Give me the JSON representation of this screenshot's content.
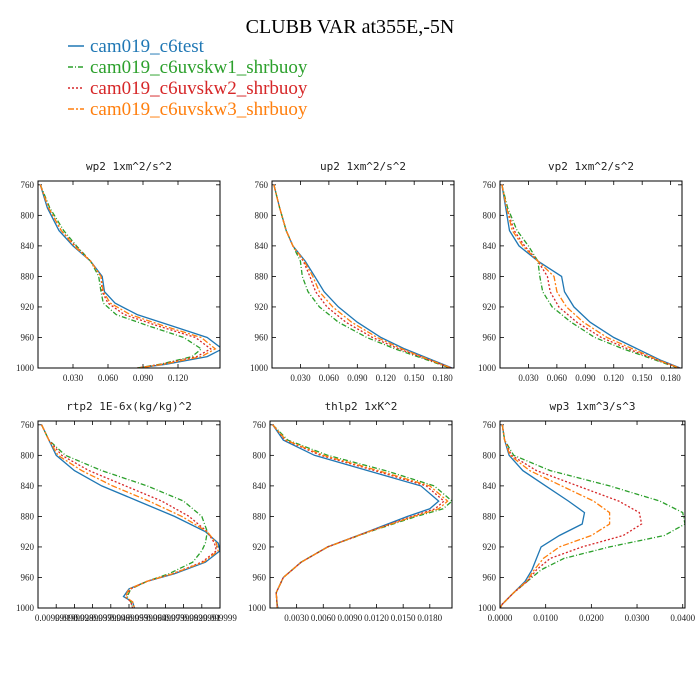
{
  "title": "CLUBB VAR at355E,-5N",
  "legend": [
    {
      "name": "cam019_c6test",
      "color": "#1f77b4",
      "dash": "solid"
    },
    {
      "name": "cam019_c6uvskw1_shrbuoy",
      "color": "#2ca02c",
      "dash": "dashdot"
    },
    {
      "name": "cam019_c6uvskw2_shrbuoy",
      "color": "#d62728",
      "dash": "dot"
    },
    {
      "name": "cam019_c6uvskw3_shrbuoy",
      "color": "#ff7f0e",
      "dash": "dashdot2"
    }
  ],
  "chart_data": [
    {
      "type": "line",
      "title": "wp2  1xm^2/s^2",
      "x_tick_labels": [
        "0.030",
        "0.060",
        "0.090",
        "0.120"
      ],
      "y_tick_labels": [
        "760",
        "800",
        "840",
        "880",
        "920",
        "960",
        "1000"
      ],
      "xlim": [
        0,
        0.156
      ],
      "ylim": [
        1000,
        755
      ],
      "y": [
        760,
        790,
        820,
        840,
        860,
        880,
        900,
        915,
        930,
        945,
        960,
        975,
        985,
        995,
        1000
      ],
      "series": [
        {
          "name": "cam019_c6test",
          "x": [
            0.002,
            0.008,
            0.018,
            0.03,
            0.045,
            0.055,
            0.057,
            0.066,
            0.085,
            0.115,
            0.145,
            0.158,
            0.145,
            0.11,
            0.086
          ]
        },
        {
          "name": "cam019_c6uvskw1_shrbuoy",
          "x": [
            0.002,
            0.01,
            0.022,
            0.033,
            0.045,
            0.052,
            0.054,
            0.056,
            0.067,
            0.095,
            0.125,
            0.14,
            0.132,
            0.105,
            0.085
          ]
        },
        {
          "name": "cam019_c6uvskw2_shrbuoy",
          "x": [
            0.002,
            0.009,
            0.02,
            0.032,
            0.045,
            0.054,
            0.055,
            0.06,
            0.074,
            0.103,
            0.135,
            0.148,
            0.136,
            0.106,
            0.085
          ]
        },
        {
          "name": "cam019_c6uvskw3_shrbuoy",
          "x": [
            0.002,
            0.009,
            0.02,
            0.031,
            0.045,
            0.054,
            0.056,
            0.062,
            0.079,
            0.108,
            0.14,
            0.152,
            0.14,
            0.108,
            0.086
          ]
        }
      ]
    },
    {
      "type": "line",
      "title": "up2  1xm^2/s^2",
      "x_tick_labels": [
        "0.030",
        "0.060",
        "0.090",
        "0.120",
        "0.150",
        "0.180"
      ],
      "y_tick_labels": [
        "760",
        "800",
        "840",
        "880",
        "920",
        "960",
        "1000"
      ],
      "xlim": [
        0,
        0.192
      ],
      "ylim": [
        1000,
        755
      ],
      "y": [
        760,
        790,
        820,
        840,
        860,
        880,
        900,
        920,
        940,
        960,
        975,
        990,
        1000
      ],
      "series": [
        {
          "name": "cam019_c6test",
          "x": [
            0.002,
            0.008,
            0.015,
            0.022,
            0.035,
            0.045,
            0.055,
            0.07,
            0.09,
            0.115,
            0.14,
            0.17,
            0.19
          ]
        },
        {
          "name": "cam019_c6uvskw1_shrbuoy",
          "x": [
            0.002,
            0.008,
            0.015,
            0.022,
            0.03,
            0.032,
            0.038,
            0.05,
            0.07,
            0.1,
            0.13,
            0.165,
            0.188
          ]
        },
        {
          "name": "cam019_c6uvskw2_shrbuoy",
          "x": [
            0.002,
            0.008,
            0.015,
            0.022,
            0.033,
            0.04,
            0.046,
            0.058,
            0.078,
            0.106,
            0.134,
            0.167,
            0.189
          ]
        },
        {
          "name": "cam019_c6uvskw3_shrbuoy",
          "x": [
            0.002,
            0.008,
            0.015,
            0.022,
            0.034,
            0.043,
            0.05,
            0.064,
            0.084,
            0.111,
            0.137,
            0.168,
            0.189
          ]
        }
      ]
    },
    {
      "type": "line",
      "title": "vp2  1xm^2/s^2",
      "x_tick_labels": [
        "0.030",
        "0.060",
        "0.090",
        "0.120",
        "0.150",
        "0.180"
      ],
      "y_tick_labels": [
        "760",
        "800",
        "840",
        "880",
        "920",
        "960",
        "1000"
      ],
      "xlim": [
        0,
        0.192
      ],
      "ylim": [
        1000,
        755
      ],
      "y": [
        760,
        790,
        820,
        840,
        860,
        880,
        900,
        920,
        940,
        960,
        975,
        990,
        1000
      ],
      "series": [
        {
          "name": "cam019_c6test",
          "x": [
            0.002,
            0.006,
            0.01,
            0.02,
            0.04,
            0.065,
            0.068,
            0.078,
            0.095,
            0.12,
            0.145,
            0.17,
            0.19
          ]
        },
        {
          "name": "cam019_c6uvskw1_shrbuoy",
          "x": [
            0.002,
            0.008,
            0.018,
            0.03,
            0.04,
            0.042,
            0.045,
            0.055,
            0.075,
            0.1,
            0.13,
            0.165,
            0.188
          ]
        },
        {
          "name": "cam019_c6uvskw2_shrbuoy",
          "x": [
            0.002,
            0.007,
            0.015,
            0.026,
            0.04,
            0.05,
            0.053,
            0.062,
            0.081,
            0.107,
            0.135,
            0.167,
            0.189
          ]
        },
        {
          "name": "cam019_c6uvskw3_shrbuoy",
          "x": [
            0.002,
            0.007,
            0.013,
            0.024,
            0.04,
            0.057,
            0.06,
            0.07,
            0.088,
            0.113,
            0.14,
            0.168,
            0.189
          ]
        }
      ]
    },
    {
      "type": "line",
      "title": "rtp2  1E-6x(kg/kg)^2",
      "x_tick_labels": [
        "0.00999990",
        "0.0199998",
        "0.0299997",
        "0.0399996",
        "0.0499995",
        "0.0599994",
        "0.0699993",
        "0.0799992",
        "0.0899991",
        "0.099999"
      ],
      "y_tick_labels": [
        "760",
        "800",
        "840",
        "880",
        "920",
        "960",
        "1000"
      ],
      "xlim": [
        0,
        0.1
      ],
      "ylim": [
        1000,
        755
      ],
      "y": [
        760,
        780,
        800,
        820,
        840,
        860,
        880,
        900,
        915,
        925,
        940,
        955,
        965,
        975,
        985,
        992,
        1000
      ],
      "series": [
        {
          "name": "cam019_c6test",
          "x": [
            0.002,
            0.006,
            0.01,
            0.02,
            0.035,
            0.055,
            0.075,
            0.092,
            0.099,
            0.1,
            0.092,
            0.075,
            0.06,
            0.05,
            0.047,
            0.052,
            0.053
          ]
        },
        {
          "name": "cam019_c6uvskw1_shrbuoy",
          "x": [
            0.002,
            0.006,
            0.015,
            0.035,
            0.06,
            0.08,
            0.09,
            0.093,
            0.092,
            0.09,
            0.085,
            0.072,
            0.06,
            0.051,
            0.049,
            0.051,
            0.052
          ]
        },
        {
          "name": "cam019_c6uvskw2_shrbuoy",
          "x": [
            0.002,
            0.006,
            0.013,
            0.028,
            0.048,
            0.068,
            0.083,
            0.093,
            0.097,
            0.098,
            0.09,
            0.074,
            0.06,
            0.051,
            0.048,
            0.051,
            0.052
          ]
        },
        {
          "name": "cam019_c6uvskw3_shrbuoy",
          "x": [
            0.002,
            0.006,
            0.011,
            0.024,
            0.041,
            0.061,
            0.079,
            0.093,
            0.098,
            0.099,
            0.091,
            0.074,
            0.06,
            0.05,
            0.048,
            0.052,
            0.053
          ]
        }
      ]
    },
    {
      "type": "line",
      "title": "thlp2  1xK^2",
      "x_tick_labels": [
        "0.0030",
        "0.0060",
        "0.0090",
        "0.0120",
        "0.0150",
        "0.0180"
      ],
      "y_tick_labels": [
        "760",
        "800",
        "840",
        "880",
        "920",
        "960",
        "1000"
      ],
      "xlim": [
        0,
        0.0205
      ],
      "ylim": [
        1000,
        755
      ],
      "y": [
        760,
        780,
        800,
        820,
        840,
        860,
        870,
        880,
        900,
        920,
        940,
        960,
        980,
        995,
        1000
      ],
      "series": [
        {
          "name": "cam019_c6test",
          "x": [
            0.0003,
            0.0015,
            0.005,
            0.011,
            0.017,
            0.019,
            0.018,
            0.0155,
            0.011,
            0.0065,
            0.0035,
            0.0015,
            0.0007,
            0.0008,
            0.0009
          ]
        },
        {
          "name": "cam019_c6uvskw1_shrbuoy",
          "x": [
            0.0003,
            0.002,
            0.0065,
            0.013,
            0.0185,
            0.0205,
            0.0195,
            0.0165,
            0.0112,
            0.0065,
            0.0035,
            0.0015,
            0.0007,
            0.0008,
            0.0008
          ]
        },
        {
          "name": "cam019_c6uvskw2_shrbuoy",
          "x": [
            0.0003,
            0.0017,
            0.0057,
            0.0118,
            0.0176,
            0.0196,
            0.0186,
            0.016,
            0.0111,
            0.0065,
            0.0035,
            0.0015,
            0.0007,
            0.0008,
            0.0008
          ]
        },
        {
          "name": "cam019_c6uvskw3_shrbuoy",
          "x": [
            0.0003,
            0.0018,
            0.006,
            0.0122,
            0.018,
            0.02,
            0.019,
            0.0162,
            0.0111,
            0.0065,
            0.0035,
            0.0015,
            0.0007,
            0.0008,
            0.0008
          ]
        }
      ]
    },
    {
      "type": "line",
      "title": "wp3  1xm^3/s^3",
      "x_tick_labels": [
        "0.0000",
        "0.0100",
        "0.0200",
        "0.0300",
        "0.0400"
      ],
      "y_tick_labels": [
        "760",
        "800",
        "840",
        "880",
        "920",
        "960",
        "1000"
      ],
      "xlim": [
        0,
        0.0405
      ],
      "ylim": [
        1000,
        755
      ],
      "y": [
        760,
        780,
        800,
        820,
        840,
        860,
        875,
        890,
        905,
        920,
        935,
        950,
        965,
        980,
        995,
        1000
      ],
      "series": [
        {
          "name": "cam019_c6test",
          "x": [
            0.0005,
            0.001,
            0.002,
            0.005,
            0.01,
            0.015,
            0.0185,
            0.018,
            0.013,
            0.009,
            0.008,
            0.007,
            0.0055,
            0.003,
            0.0005,
            0.0
          ]
        },
        {
          "name": "cam019_c6uvskw1_shrbuoy",
          "x": [
            0.0005,
            0.001,
            0.003,
            0.011,
            0.024,
            0.035,
            0.04,
            0.0405,
            0.036,
            0.024,
            0.014,
            0.009,
            0.006,
            0.003,
            0.0005,
            0.0
          ]
        },
        {
          "name": "cam019_c6uvskw2_shrbuoy",
          "x": [
            0.0005,
            0.001,
            0.0025,
            0.008,
            0.017,
            0.026,
            0.0305,
            0.031,
            0.027,
            0.018,
            0.011,
            0.008,
            0.006,
            0.003,
            0.0005,
            0.0
          ]
        },
        {
          "name": "cam019_c6uvskw3_shrbuoy",
          "x": [
            0.0005,
            0.001,
            0.0022,
            0.0065,
            0.0135,
            0.0205,
            0.024,
            0.024,
            0.02,
            0.013,
            0.0095,
            0.0075,
            0.0058,
            0.003,
            0.0005,
            0.0
          ]
        }
      ]
    }
  ]
}
